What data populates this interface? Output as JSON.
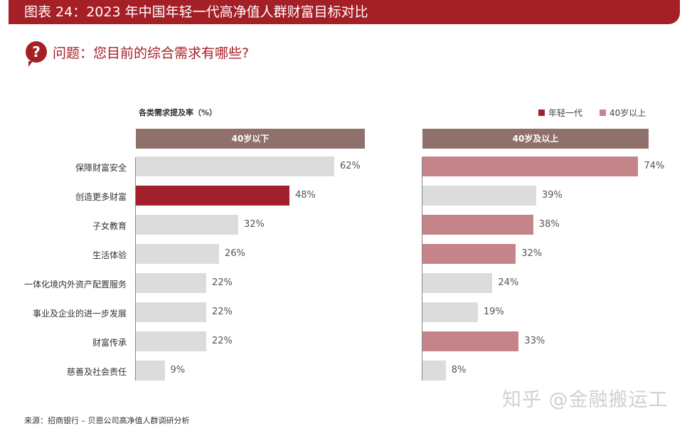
{
  "banner_title": "图表 24：2023 年中国年轻一代高净值人群财富目标对比",
  "question": "问题：您目前的综合需求有哪些?",
  "question_icon": "question-mark-icon",
  "source": "来源：招商银行 – 贝恩公司高净值人群调研分析",
  "watermark": "知乎 @金融搬运工",
  "colors": {
    "banner": "#a51f26",
    "header": "#8f706b",
    "gray": "#dcdcdc",
    "young": "#a0212a",
    "over40": "#c4848a"
  },
  "chart_data": {
    "type": "bar",
    "orientation": "horizontal",
    "subtitle": "各类需求提及率（%）",
    "legend": [
      {
        "name": "年轻一代",
        "color": "#a0212a"
      },
      {
        "name": "40岁以上",
        "color": "#c4848a"
      }
    ],
    "legend_position": "top-right",
    "categories": [
      "保障财富安全",
      "创造更多财富",
      "子女教育",
      "生活体验",
      "一体化境内外资产配置服务",
      "事业及企业的进一步发展",
      "财富传承",
      "慈善及社会责任"
    ],
    "panels": [
      {
        "title": "40岁以下",
        "values": [
          62,
          48,
          32,
          26,
          22,
          22,
          22,
          9
        ],
        "highlight": [
          false,
          true,
          false,
          false,
          false,
          false,
          false,
          false
        ]
      },
      {
        "title": "40岁及以上",
        "values": [
          74,
          39,
          38,
          32,
          24,
          19,
          33,
          8
        ],
        "highlight": [
          true,
          false,
          true,
          true,
          false,
          false,
          true,
          false
        ]
      }
    ],
    "unit": "%"
  }
}
